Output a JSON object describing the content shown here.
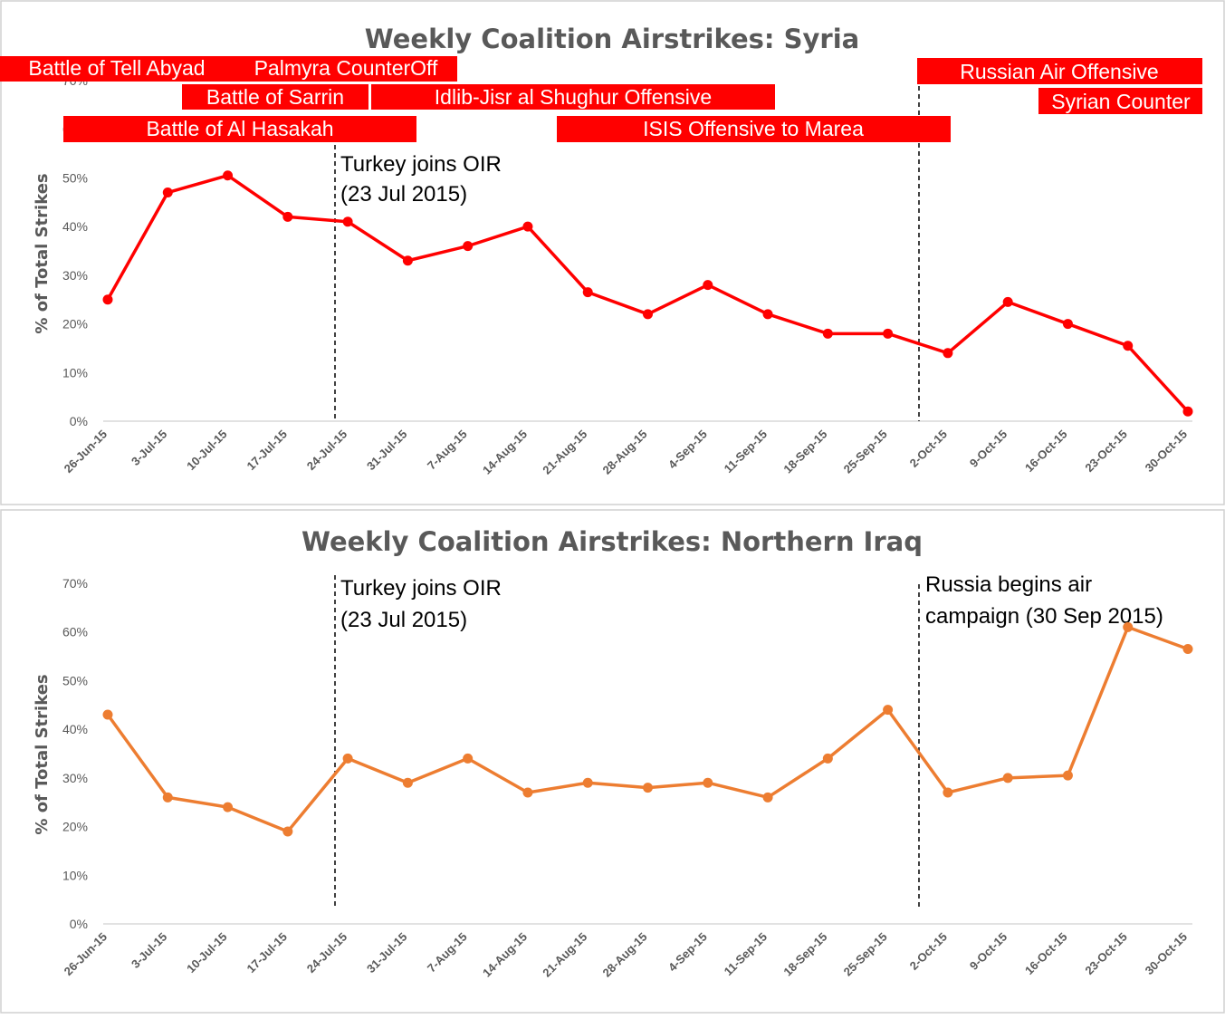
{
  "chart_data": [
    {
      "type": "line",
      "title": "Weekly Coalition Airstrikes: Syria",
      "ylabel": "% of Total Strikes",
      "xlabel": "",
      "ylim": [
        0,
        0.7
      ],
      "yticks": [
        "0%",
        "10%",
        "20%",
        "30%",
        "40%",
        "50%",
        "60%",
        "70%"
      ],
      "categories": [
        "26-Jun-15",
        "3-Jul-15",
        "10-Jul-15",
        "17-Jul-15",
        "24-Jul-15",
        "31-Jul-15",
        "7-Aug-15",
        "14-Aug-15",
        "21-Aug-15",
        "28-Aug-15",
        "4-Sep-15",
        "11-Sep-15",
        "18-Sep-15",
        "25-Sep-15",
        "2-Oct-15",
        "9-Oct-15",
        "16-Oct-15",
        "23-Oct-15",
        "30-Oct-15"
      ],
      "series": [
        {
          "color": "#ff0000",
          "values": [
            0.25,
            0.47,
            0.505,
            0.42,
            0.41,
            0.33,
            0.36,
            0.4,
            0.265,
            0.22,
            0.28,
            0.22,
            0.18,
            0.18,
            0.14,
            0.245,
            0.2,
            0.155,
            0.02
          ]
        }
      ],
      "grid": false,
      "vertical_lines": [
        {
          "x": "23-Jul-15",
          "label_lines": [
            "Turkey joins OIR",
            "(23 Jul 2015)"
          ]
        },
        {
          "x": "30-Sep-15",
          "label_lines": []
        }
      ],
      "events": [
        {
          "label": "Battle of Tell Abyad",
          "color": "#ff0000"
        },
        {
          "label": "Palmyra CounterOff",
          "color": "#ff0000"
        },
        {
          "label": "Battle of Sarrin",
          "color": "#ff0000"
        },
        {
          "label": "Idlib-Jisr al Shughur Offensive",
          "color": "#ff0000"
        },
        {
          "label": "Battle of Al Hasakah",
          "color": "#ff0000"
        },
        {
          "label": "ISIS Offensive to Marea",
          "color": "#ff0000"
        },
        {
          "label": "Russian Air Offensive",
          "color": "#ff0000"
        },
        {
          "label": "Syrian Counter",
          "color": "#ff0000"
        }
      ]
    },
    {
      "type": "line",
      "title": "Weekly Coalition Airstrikes: Northern Iraq",
      "ylabel": "% of Total Strikes",
      "xlabel": "",
      "ylim": [
        0,
        0.7
      ],
      "yticks": [
        "0%",
        "10%",
        "20%",
        "30%",
        "40%",
        "50%",
        "60%",
        "70%"
      ],
      "categories": [
        "26-Jun-15",
        "3-Jul-15",
        "10-Jul-15",
        "17-Jul-15",
        "24-Jul-15",
        "31-Jul-15",
        "7-Aug-15",
        "14-Aug-15",
        "21-Aug-15",
        "28-Aug-15",
        "4-Sep-15",
        "11-Sep-15",
        "18-Sep-15",
        "25-Sep-15",
        "2-Oct-15",
        "9-Oct-15",
        "16-Oct-15",
        "23-Oct-15",
        "30-Oct-15"
      ],
      "series": [
        {
          "color": "#ed7d31",
          "values": [
            0.43,
            0.26,
            0.24,
            0.19,
            0.34,
            0.29,
            0.34,
            0.27,
            0.29,
            0.28,
            0.29,
            0.26,
            0.34,
            0.44,
            0.27,
            0.3,
            0.305,
            0.61,
            0.565
          ]
        }
      ],
      "grid": false,
      "vertical_lines": [
        {
          "x": "23-Jul-15",
          "label_lines": [
            "Turkey joins OIR",
            "(23 Jul 2015)"
          ]
        },
        {
          "x": "30-Sep-15",
          "label_lines": [
            "Russia begins air",
            "campaign (30 Sep 2015)"
          ]
        }
      ]
    }
  ]
}
